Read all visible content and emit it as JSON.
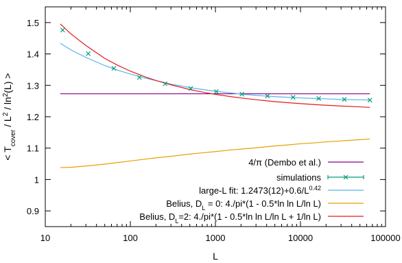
{
  "chart_data": {
    "type": "line",
    "xlabel": "L",
    "ylabel": "< T_cover / L^2 / ln^2(L) >",
    "x_scale": "log",
    "xlim": [
      10,
      100000
    ],
    "ylim": [
      0.85,
      1.55
    ],
    "x_ticks": [
      10,
      100,
      1000,
      10000,
      100000
    ],
    "x_tick_labels": [
      "10",
      "100",
      "1000",
      "10000",
      "100000"
    ],
    "y_ticks": [
      0.9,
      1.0,
      1.1,
      1.2,
      1.3,
      1.4,
      1.5
    ],
    "y_tick_labels": [
      "0.9",
      "1",
      "1.1",
      "1.2",
      "1.3",
      "1.4",
      "1.5"
    ],
    "grid": false,
    "legend_position": "bottom-right",
    "series": [
      {
        "name": "4/π  (Dembo et al.)",
        "kind": "line",
        "color": "#8b008b",
        "x": [
          15,
          65536
        ],
        "y": [
          1.2732,
          1.2732
        ]
      },
      {
        "name": "simulations",
        "kind": "errorbar-points",
        "color": "#009e73",
        "x": [
          16,
          32,
          64,
          128,
          256,
          512,
          1024,
          2048,
          4096,
          8192,
          16384,
          32768,
          65536
        ],
        "y": [
          1.476,
          1.401,
          1.354,
          1.325,
          1.305,
          1.29,
          1.28,
          1.272,
          1.266,
          1.262,
          1.258,
          1.255,
          1.253
        ]
      },
      {
        "name": "large-L fit:  1.2473(12)+0.6/L^0.42",
        "kind": "line",
        "color": "#56b4e9",
        "x": [
          15,
          20,
          30,
          50,
          70,
          100,
          150,
          200,
          300,
          500,
          700,
          1000,
          1500,
          2000,
          3000,
          5000,
          7000,
          10000,
          15000,
          20000,
          30000,
          50000,
          65536
        ],
        "y": [
          1.434,
          1.413,
          1.389,
          1.363,
          1.349,
          1.336,
          1.323,
          1.315,
          1.304,
          1.293,
          1.287,
          1.281,
          1.276,
          1.272,
          1.268,
          1.264,
          1.262,
          1.26,
          1.258,
          1.257,
          1.255,
          1.254,
          1.253
        ]
      },
      {
        "name": "Belius, D_L = 0: 4./pi*(1 - 0.5*ln ln L/ln L)",
        "kind": "line",
        "color": "#e69f00",
        "x": [
          15,
          20,
          30,
          50,
          70,
          100,
          150,
          200,
          300,
          500,
          700,
          1000,
          1500,
          2000,
          3000,
          5000,
          7000,
          10000,
          15000,
          20000,
          30000,
          50000,
          65536
        ],
        "y": [
          1.038,
          1.039,
          1.043,
          1.049,
          1.054,
          1.059,
          1.065,
          1.069,
          1.074,
          1.081,
          1.085,
          1.089,
          1.094,
          1.097,
          1.101,
          1.107,
          1.11,
          1.114,
          1.117,
          1.12,
          1.123,
          1.127,
          1.129
        ]
      },
      {
        "name": "Belius, D_L=2: 4./pi*(1 - 0.5*ln ln L/ln L + 1/ln L)",
        "kind": "line",
        "color": "#e41a1c",
        "x": [
          15,
          20,
          30,
          50,
          70,
          100,
          150,
          200,
          300,
          500,
          700,
          1000,
          1500,
          2000,
          3000,
          5000,
          7000,
          10000,
          15000,
          20000,
          30000,
          50000,
          65536
        ],
        "y": [
          1.4958,
          1.464,
          1.4269,
          1.386,
          1.3647,
          1.3452,
          1.3267,
          1.3155,
          1.3017,
          1.2867,
          1.2786,
          1.2713,
          1.2642,
          1.2598,
          1.2543,
          1.2482,
          1.2448,
          1.2418,
          1.2386,
          1.2366,
          1.2342,
          1.2313,
          1.23
        ]
      }
    ]
  }
}
